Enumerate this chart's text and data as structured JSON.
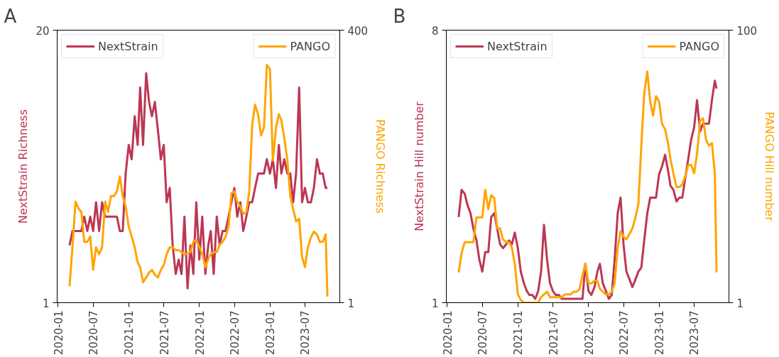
{
  "chart_data": [
    {
      "type": "line",
      "title": "A",
      "ylabel": "NextStrain Richness",
      "y2label": "PANGO Richness",
      "grid": false,
      "legend": "top",
      "xlim": [
        "2019-12-28",
        "2023-12-28"
      ],
      "xticks": [
        "2020-01",
        "2020-07",
        "2021-01",
        "2021-07",
        "2022-01",
        "2022-07",
        "2023-01",
        "2023-07"
      ],
      "ylim": [
        1,
        20
      ],
      "yticks": [
        1,
        20
      ],
      "y2lim": [
        1,
        400
      ],
      "y2ticks": [
        1,
        400
      ],
      "x": [
        "2020-03-01",
        "2020-03-16",
        "2020-04-01",
        "2020-04-16",
        "2020-05-01",
        "2020-05-16",
        "2020-06-01",
        "2020-06-16",
        "2020-07-01",
        "2020-07-16",
        "2020-08-01",
        "2020-08-16",
        "2020-09-01",
        "2020-09-16",
        "2020-10-01",
        "2020-10-16",
        "2020-11-01",
        "2020-11-16",
        "2020-12-01",
        "2020-12-16",
        "2021-01-01",
        "2021-01-16",
        "2021-02-01",
        "2021-02-16",
        "2021-03-01",
        "2021-03-16",
        "2021-04-01",
        "2021-04-16",
        "2021-05-01",
        "2021-05-16",
        "2021-06-01",
        "2021-06-16",
        "2021-07-01",
        "2021-07-16",
        "2021-08-01",
        "2021-08-16",
        "2021-09-01",
        "2021-09-16",
        "2021-10-01",
        "2021-10-16",
        "2021-11-01",
        "2021-11-16",
        "2021-12-01",
        "2021-12-16",
        "2022-01-01",
        "2022-01-16",
        "2022-02-01",
        "2022-02-16",
        "2022-03-01",
        "2022-03-16",
        "2022-04-01",
        "2022-04-16",
        "2022-05-01",
        "2022-05-16",
        "2022-06-01",
        "2022-06-16",
        "2022-07-01",
        "2022-07-16",
        "2022-08-01",
        "2022-08-16",
        "2022-09-01",
        "2022-09-16",
        "2022-10-01",
        "2022-10-16",
        "2022-11-01",
        "2022-11-16",
        "2022-12-01",
        "2022-12-16",
        "2023-01-01",
        "2023-01-16",
        "2023-02-01",
        "2023-02-16",
        "2023-03-01",
        "2023-03-16",
        "2023-04-01",
        "2023-04-16",
        "2023-05-01",
        "2023-05-16",
        "2023-06-01",
        "2023-06-16",
        "2023-07-01",
        "2023-07-16",
        "2023-08-01",
        "2023-08-16",
        "2023-09-01",
        "2023-09-16",
        "2023-10-01",
        "2023-10-16",
        "2023-10-25"
      ],
      "series": [
        {
          "name": "NextStrain",
          "color": "#bc3754",
          "values": [
            5,
            6,
            6,
            6,
            6,
            7,
            6,
            7,
            6,
            8,
            6,
            8,
            7,
            7,
            7,
            7,
            7,
            6,
            6,
            10,
            12,
            11,
            14,
            12,
            16,
            12,
            17,
            15,
            14,
            15,
            13,
            11,
            12,
            8,
            9,
            5,
            3,
            4,
            3,
            7,
            2,
            5,
            3,
            8,
            4,
            7,
            3,
            5,
            6,
            3,
            7,
            5,
            6,
            6,
            7,
            8,
            9,
            7,
            8,
            6,
            7,
            8,
            8,
            9,
            10,
            10,
            10,
            11,
            10,
            11,
            9,
            12,
            10,
            11,
            10,
            10,
            8,
            10,
            16,
            8,
            9,
            8,
            8,
            9,
            11,
            10,
            10,
            9,
            9
          ]
        },
        {
          "name": "PANGO",
          "color": "#ffa500",
          "axis": "y2",
          "values": [
            25,
            82,
            149,
            139,
            134,
            90,
            90,
            98,
            49,
            82,
            72,
            82,
            149,
            134,
            157,
            157,
            164,
            186,
            157,
            142,
            112,
            98,
            82,
            60,
            53,
            31,
            38,
            45,
            49,
            42,
            38,
            49,
            56,
            72,
            82,
            82,
            78,
            78,
            75,
            72,
            73,
            75,
            90,
            93,
            82,
            72,
            53,
            65,
            72,
            75,
            75,
            86,
            90,
            97,
            112,
            161,
            164,
            149,
            142,
            131,
            134,
            164,
            261,
            291,
            276,
            246,
            257,
            349,
            343,
            209,
            257,
            277,
            268,
            242,
            209,
            157,
            138,
            120,
            124,
            68,
            53,
            82,
            97,
            105,
            101,
            90,
            90,
            101,
            10
          ]
        }
      ]
    },
    {
      "type": "line",
      "title": "B",
      "ylabel": "NextStrain Hill number",
      "y2label": "PANGO Hill number",
      "grid": false,
      "legend": "top",
      "xlim": [
        "2019-12-28",
        "2023-12-28"
      ],
      "xticks": [
        "2020-01",
        "2020-07",
        "2021-01",
        "2021-07",
        "2022-01",
        "2022-07",
        "2023-01",
        "2023-07"
      ],
      "ylim": [
        1,
        8
      ],
      "yticks": [
        1,
        8
      ],
      "y2lim": [
        1,
        100
      ],
      "y2ticks": [
        1,
        100
      ],
      "x": [
        "2020-03-01",
        "2020-03-16",
        "2020-04-01",
        "2020-04-16",
        "2020-05-01",
        "2020-05-16",
        "2020-06-01",
        "2020-06-16",
        "2020-07-01",
        "2020-07-16",
        "2020-08-01",
        "2020-08-16",
        "2020-09-01",
        "2020-09-16",
        "2020-10-01",
        "2020-10-16",
        "2020-11-01",
        "2020-11-16",
        "2020-12-01",
        "2020-12-16",
        "2021-01-01",
        "2021-01-16",
        "2021-02-01",
        "2021-02-16",
        "2021-03-01",
        "2021-03-16",
        "2021-04-01",
        "2021-04-16",
        "2021-05-01",
        "2021-05-16",
        "2021-06-01",
        "2021-06-16",
        "2021-07-01",
        "2021-07-16",
        "2021-08-01",
        "2021-08-16",
        "2021-09-01",
        "2021-09-16",
        "2021-10-01",
        "2021-10-16",
        "2021-11-01",
        "2021-11-16",
        "2021-12-01",
        "2021-12-16",
        "2022-01-01",
        "2022-01-16",
        "2022-02-01",
        "2022-02-16",
        "2022-03-01",
        "2022-03-16",
        "2022-04-01",
        "2022-04-16",
        "2022-05-01",
        "2022-05-16",
        "2022-06-01",
        "2022-06-16",
        "2022-07-01",
        "2022-07-16",
        "2022-08-01",
        "2022-08-16",
        "2022-09-01",
        "2022-09-16",
        "2022-10-01",
        "2022-10-16",
        "2022-11-01",
        "2022-11-16",
        "2022-12-01",
        "2022-12-16",
        "2023-01-01",
        "2023-01-16",
        "2023-02-01",
        "2023-02-16",
        "2023-03-01",
        "2023-03-16",
        "2023-04-01",
        "2023-04-16",
        "2023-05-01",
        "2023-05-16",
        "2023-06-01",
        "2023-06-16",
        "2023-07-01",
        "2023-07-16",
        "2023-08-01",
        "2023-08-16",
        "2023-09-01",
        "2023-09-16",
        "2023-10-01",
        "2023-10-16",
        "2023-10-25"
      ],
      "series": [
        {
          "name": "NextStrain",
          "color": "#bc3754",
          "values": [
            3.2,
            3.9,
            3.8,
            3.5,
            3.3,
            2.9,
            2.6,
            2.1,
            1.8,
            2.3,
            2.3,
            3.2,
            3.3,
            2.9,
            2.5,
            2.4,
            2.5,
            2.6,
            2.5,
            2.8,
            2.4,
            1.8,
            1.5,
            1.3,
            1.2,
            1.2,
            1.1,
            1.3,
            1.8,
            3.0,
            2.1,
            1.5,
            1.3,
            1.2,
            1.2,
            1.1,
            1.1,
            1.1,
            1.1,
            1.1,
            1.1,
            1.1,
            1.1,
            2.0,
            1.3,
            1.2,
            1.4,
            1.8,
            2.0,
            1.5,
            1.3,
            1.1,
            1.2,
            2.1,
            3.3,
            3.7,
            2.5,
            1.8,
            1.6,
            1.4,
            1.6,
            1.8,
            1.9,
            2.6,
            3.3,
            3.7,
            3.7,
            3.7,
            4.3,
            4.5,
            4.8,
            4.4,
            4.0,
            3.9,
            3.6,
            3.7,
            3.7,
            4.2,
            4.7,
            5.2,
            5.5,
            6.2,
            5.4,
            5.6,
            5.6,
            5.6,
            6.2,
            6.7,
            6.5
          ]
        },
        {
          "name": "PANGO",
          "color": "#ffa500",
          "axis": "y2",
          "values": [
            12,
            19,
            23,
            23,
            23,
            23,
            32,
            32,
            32,
            42,
            35,
            40,
            39,
            28,
            28,
            24,
            23,
            23,
            21,
            15,
            4,
            2,
            1,
            1,
            1,
            1,
            1,
            1,
            3,
            4,
            5,
            3,
            3,
            3,
            3,
            3,
            4,
            4,
            4,
            5,
            5,
            6,
            11,
            15,
            8,
            8,
            9,
            9,
            6,
            5,
            4,
            4,
            5,
            8,
            21,
            27,
            25,
            24,
            26,
            28,
            32,
            37,
            58,
            77,
            85,
            74,
            69,
            76,
            74,
            66,
            64,
            59,
            53,
            48,
            43,
            43,
            44,
            47,
            51,
            51,
            48,
            55,
            67,
            68,
            60,
            58,
            59,
            48,
            12
          ]
        }
      ]
    }
  ]
}
